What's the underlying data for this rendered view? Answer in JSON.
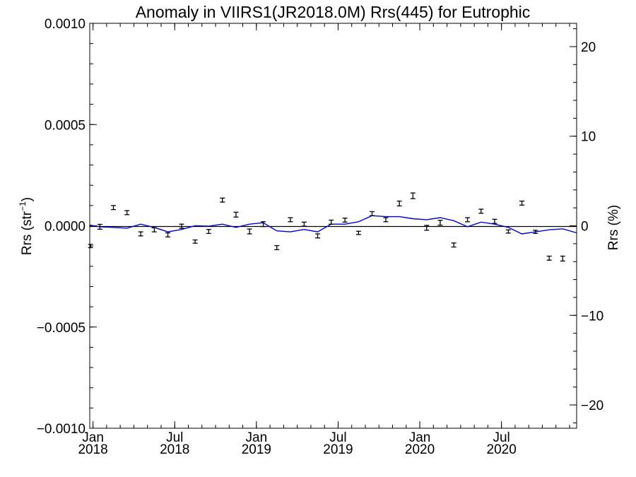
{
  "chart_data": {
    "type": "line",
    "title": "Anomaly in VIIRS1(JR2018.0M) Rrs(445) for Eutrophic",
    "ylabel": "Rrs (str",
    "ylabel_sup": "−1",
    "ylabel_close": ")",
    "y2label": "Rrs (%)",
    "ylim": [
      -0.001,
      0.001
    ],
    "y2lim": [
      -22.6,
      22.6
    ],
    "xlim": [
      2017.98,
      2020.96
    ],
    "yticks": [
      {
        "value": 0.001,
        "label": "0.0010"
      },
      {
        "value": 0.0005,
        "label": "0.0005"
      },
      {
        "value": 0.0,
        "label": "0.0000"
      },
      {
        "value": -0.0005,
        "label": "−0.0005"
      },
      {
        "value": -0.001,
        "label": "−0.0010"
      }
    ],
    "y2ticks": [
      {
        "value": 20,
        "label": "20"
      },
      {
        "value": 10,
        "label": "10"
      },
      {
        "value": 0,
        "label": "0"
      },
      {
        "value": -10,
        "label": "−10"
      },
      {
        "value": -20,
        "label": "−20"
      }
    ],
    "xticks": [
      {
        "value": 2018.0,
        "month": "Jan",
        "year": "2018"
      },
      {
        "value": 2018.5,
        "month": "Jul",
        "year": "2018"
      },
      {
        "value": 2019.0,
        "month": "Jan",
        "year": "2019"
      },
      {
        "value": 2019.5,
        "month": "Jul",
        "year": "2019"
      },
      {
        "value": 2020.0,
        "month": "Jan",
        "year": "2020"
      },
      {
        "value": 2020.5,
        "month": "Jul",
        "year": "2020"
      }
    ],
    "zero_line": 0.0,
    "series": [
      {
        "kind": "errorbar",
        "color": "#000000",
        "points": [
          {
            "x": 2018.042,
            "y": -5e-06,
            "err": 1.2e-05
          },
          {
            "x": 2018.125,
            "y": 9e-05,
            "err": 1e-05
          },
          {
            "x": 2018.208,
            "y": 6.5e-05,
            "err": 1e-05
          },
          {
            "x": 2018.292,
            "y": -4e-05,
            "err": 1e-05
          },
          {
            "x": 2018.375,
            "y": -2e-05,
            "err": 1e-05
          },
          {
            "x": 2018.458,
            "y": -4.5e-05,
            "err": 1e-05
          },
          {
            "x": 2018.542,
            "y": -2e-06,
            "err": 1e-05
          },
          {
            "x": 2018.625,
            "y": -7.8e-05,
            "err": 8e-06
          },
          {
            "x": 2018.708,
            "y": -2.8e-05,
            "err": 1e-05
          },
          {
            "x": 2018.792,
            "y": 0.000127,
            "err": 1e-05
          },
          {
            "x": 2018.875,
            "y": 5.5e-05,
            "err": 1.2e-05
          },
          {
            "x": 2018.958,
            "y": -2.8e-05,
            "err": 1.2e-05
          },
          {
            "x": 2019.042,
            "y": 8e-06,
            "err": 1.2e-05
          },
          {
            "x": 2019.125,
            "y": -0.000108,
            "err": 1e-05
          },
          {
            "x": 2019.208,
            "y": 3e-05,
            "err": 1e-05
          },
          {
            "x": 2019.292,
            "y": 8e-06,
            "err": 1e-05
          },
          {
            "x": 2019.375,
            "y": -5e-05,
            "err": 1e-05
          },
          {
            "x": 2019.458,
            "y": 1.8e-05,
            "err": 1e-05
          },
          {
            "x": 2019.542,
            "y": 2.8e-05,
            "err": 1e-05
          },
          {
            "x": 2019.625,
            "y": -3.5e-05,
            "err": 8e-06
          },
          {
            "x": 2019.708,
            "y": 6e-05,
            "err": 1e-05
          },
          {
            "x": 2019.792,
            "y": 3e-05,
            "err": 1e-05
          },
          {
            "x": 2019.875,
            "y": 0.00011,
            "err": 1.2e-05
          },
          {
            "x": 2019.958,
            "y": 0.000148,
            "err": 1.4e-05
          },
          {
            "x": 2020.042,
            "y": -1e-05,
            "err": 1.2e-05
          },
          {
            "x": 2020.125,
            "y": 1.5e-05,
            "err": 1.2e-05
          },
          {
            "x": 2020.208,
            "y": -9.5e-05,
            "err": 1e-05
          },
          {
            "x": 2020.292,
            "y": 3e-05,
            "err": 1e-05
          },
          {
            "x": 2020.375,
            "y": 7.2e-05,
            "err": 1e-05
          },
          {
            "x": 2020.458,
            "y": 2.2e-05,
            "err": 1e-05
          },
          {
            "x": 2020.542,
            "y": -2.8e-05,
            "err": 8e-06
          },
          {
            "x": 2020.625,
            "y": 0.000112,
            "err": 1e-05
          },
          {
            "x": 2020.708,
            "y": -3e-05,
            "err": 8e-06
          },
          {
            "x": 2020.792,
            "y": -0.00016,
            "err": 1e-05
          },
          {
            "x": 2020.875,
            "y": -0.000162,
            "err": 1.2e-05
          },
          {
            "x": 2017.985,
            "y": -0.0001,
            "err": 8e-06
          }
        ]
      },
      {
        "kind": "line",
        "color": "#0000d0",
        "points": [
          {
            "x": 2017.98,
            "y": 3e-06
          },
          {
            "x": 2018.042,
            "y": -5e-06
          },
          {
            "x": 2018.125,
            "y": -8e-06
          },
          {
            "x": 2018.208,
            "y": -1.2e-05
          },
          {
            "x": 2018.292,
            "y": 8e-06
          },
          {
            "x": 2018.375,
            "y": -8e-06
          },
          {
            "x": 2018.458,
            "y": -3e-05
          },
          {
            "x": 2018.542,
            "y": -1.8e-05
          },
          {
            "x": 2018.625,
            "y": 0.0
          },
          {
            "x": 2018.708,
            "y": -2e-06
          },
          {
            "x": 2018.792,
            "y": 8e-06
          },
          {
            "x": 2018.875,
            "y": -8e-06
          },
          {
            "x": 2018.958,
            "y": 8e-06
          },
          {
            "x": 2019.042,
            "y": 1.5e-05
          },
          {
            "x": 2019.125,
            "y": -2.5e-05
          },
          {
            "x": 2019.208,
            "y": -3e-05
          },
          {
            "x": 2019.292,
            "y": -1.8e-05
          },
          {
            "x": 2019.375,
            "y": -3e-05
          },
          {
            "x": 2019.458,
            "y": 8e-06
          },
          {
            "x": 2019.542,
            "y": 8e-06
          },
          {
            "x": 2019.625,
            "y": 2e-05
          },
          {
            "x": 2019.708,
            "y": 5e-05
          },
          {
            "x": 2019.792,
            "y": 4.5e-05
          },
          {
            "x": 2019.875,
            "y": 4.5e-05
          },
          {
            "x": 2019.958,
            "y": 3.5e-05
          },
          {
            "x": 2020.042,
            "y": 3e-05
          },
          {
            "x": 2020.125,
            "y": 4e-05
          },
          {
            "x": 2020.208,
            "y": 2.5e-05
          },
          {
            "x": 2020.292,
            "y": -5e-06
          },
          {
            "x": 2020.375,
            "y": 1.8e-05
          },
          {
            "x": 2020.458,
            "y": 8e-06
          },
          {
            "x": 2020.542,
            "y": -8e-06
          },
          {
            "x": 2020.625,
            "y": -4e-05
          },
          {
            "x": 2020.708,
            "y": -3e-05
          },
          {
            "x": 2020.792,
            "y": -2e-05
          },
          {
            "x": 2020.875,
            "y": -1.5e-05
          },
          {
            "x": 2020.96,
            "y": -3.5e-05
          }
        ]
      }
    ]
  }
}
